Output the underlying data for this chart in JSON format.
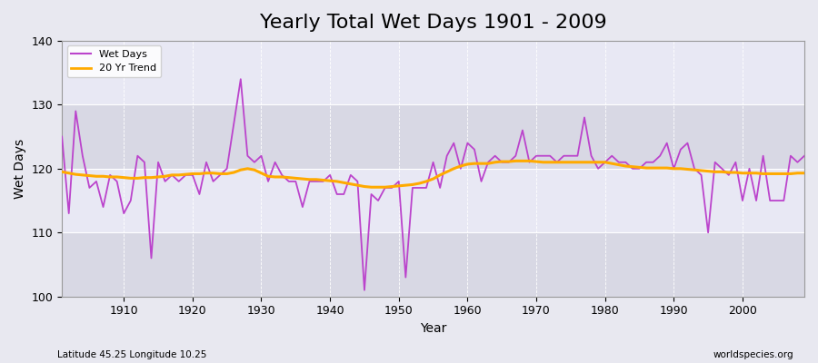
{
  "title": "Yearly Total Wet Days 1901 - 2009",
  "xlabel": "Year",
  "ylabel": "Wet Days",
  "xlim": [
    1901,
    2009
  ],
  "ylim": [
    100,
    140
  ],
  "yticks": [
    100,
    110,
    120,
    130,
    140
  ],
  "xticks": [
    1910,
    1920,
    1930,
    1940,
    1950,
    1960,
    1970,
    1980,
    1990,
    2000
  ],
  "line_color": "#bb44cc",
  "trend_color": "#ffaa00",
  "bg_color": "#e8e8f0",
  "bg_band_light": "#dcdce8",
  "bg_band_dark": "#e8e8f4",
  "legend_label_wet": "Wet Days",
  "legend_label_trend": "20 Yr Trend",
  "footnote_left": "Latitude 45.25 Longitude 10.25",
  "footnote_right": "worldspecies.org",
  "title_fontsize": 16,
  "label_fontsize": 10,
  "tick_fontsize": 9,
  "wet_days": [
    125,
    113,
    129,
    122,
    117,
    118,
    114,
    119,
    118,
    113,
    115,
    122,
    121,
    106,
    121,
    118,
    119,
    118,
    119,
    119,
    116,
    121,
    118,
    119,
    120,
    127,
    134,
    122,
    121,
    122,
    118,
    121,
    119,
    118,
    118,
    114,
    118,
    118,
    118,
    119,
    116,
    116,
    119,
    118,
    101,
    116,
    115,
    117,
    117,
    118,
    103,
    117,
    117,
    117,
    121,
    117,
    122,
    124,
    120,
    124,
    123,
    118,
    121,
    122,
    121,
    121,
    122,
    126,
    121,
    122,
    122,
    122,
    121,
    122,
    122,
    122,
    128,
    122,
    120,
    121,
    122,
    121,
    121,
    120,
    120,
    121,
    121,
    122,
    124,
    120,
    123,
    124,
    120,
    119,
    110,
    121,
    120,
    119,
    121,
    115,
    120,
    115,
    122,
    115,
    115,
    115,
    122,
    121,
    122
  ],
  "trend_days": [
    119.5,
    119.3,
    119.1,
    119.0,
    118.9,
    118.8,
    118.8,
    118.7,
    118.7,
    118.6,
    118.5,
    118.5,
    118.6,
    118.6,
    118.7,
    118.8,
    119.0,
    119.0,
    119.1,
    119.2,
    119.2,
    119.3,
    119.3,
    119.2,
    119.2,
    119.4,
    119.8,
    120.0,
    119.8,
    119.3,
    118.8,
    118.7,
    118.7,
    118.6,
    118.5,
    118.4,
    118.3,
    118.3,
    118.2,
    118.1,
    118.0,
    117.8,
    117.6,
    117.4,
    117.2,
    117.1,
    117.1,
    117.1,
    117.2,
    117.3,
    117.4,
    117.5,
    117.7,
    118.0,
    118.4,
    119.0,
    119.5,
    120.0,
    120.4,
    120.7,
    120.8,
    120.8,
    120.8,
    121.0,
    121.1,
    121.1,
    121.2,
    121.2,
    121.2,
    121.1,
    121.0,
    121.0,
    121.0,
    121.0,
    121.0,
    121.0,
    121.0,
    121.0,
    121.0,
    121.0,
    120.8,
    120.6,
    120.4,
    120.3,
    120.2,
    120.1,
    120.1,
    120.1,
    120.1,
    120.0,
    120.0,
    119.9,
    119.8,
    119.7,
    119.6,
    119.5,
    119.5,
    119.4,
    119.4,
    119.3,
    119.3,
    119.3,
    119.2,
    119.2,
    119.2,
    119.2,
    119.2,
    119.3,
    119.3
  ],
  "band_ranges": [
    [
      100,
      110
    ],
    [
      120,
      130
    ]
  ],
  "band_color_light": "#d8d8e4",
  "band_color_mid": "#e0e0ec"
}
